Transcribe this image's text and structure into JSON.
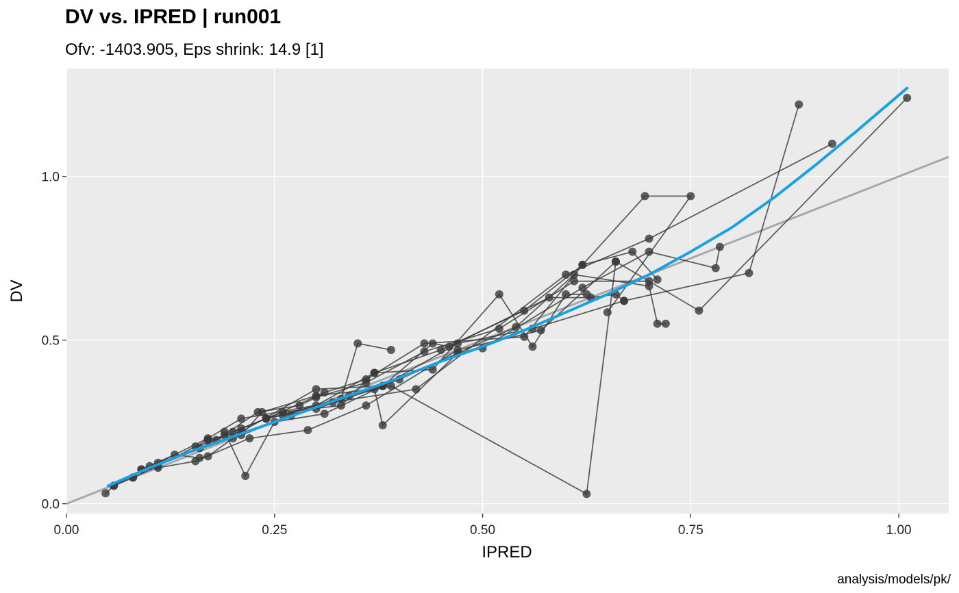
{
  "chart_data": {
    "type": "scatter",
    "title": "DV vs. IPRED | run001",
    "subtitle": "Ofv: -1403.905, Eps shrink: 14.9 [1]",
    "xlabel": "IPRED",
    "ylabel": "DV",
    "caption": "analysis/models/pk/",
    "xlim": [
      0.0,
      1.06
    ],
    "ylim": [
      -0.03,
      1.33
    ],
    "x_ticks": [
      0.0,
      0.25,
      0.5,
      0.75,
      1.0
    ],
    "x_tick_labels": [
      "0.00",
      "0.25",
      "0.50",
      "0.75",
      "1.00"
    ],
    "y_ticks": [
      0.0,
      0.5,
      1.0
    ],
    "y_tick_labels": [
      "0.0",
      "0.5",
      "1.0"
    ],
    "grid": true,
    "colors": {
      "panel": "#EBEBEB",
      "grid": "#FFFFFF",
      "points": "#3a3a3a",
      "lines": "#3a3a3a",
      "identity": "#A8A8A8",
      "smooth": "#1BA1E2"
    },
    "reference_line": {
      "type": "identity",
      "x": [
        0.0,
        1.06
      ],
      "y": [
        0.0,
        1.06
      ]
    },
    "smooth": {
      "x": [
        0.05,
        0.1,
        0.15,
        0.2,
        0.25,
        0.3,
        0.35,
        0.4,
        0.45,
        0.5,
        0.55,
        0.6,
        0.65,
        0.7,
        0.75,
        0.8,
        0.85,
        0.9,
        0.95,
        1.01
      ],
      "y": [
        0.055,
        0.11,
        0.16,
        0.205,
        0.25,
        0.295,
        0.34,
        0.385,
        0.435,
        0.48,
        0.53,
        0.585,
        0.64,
        0.7,
        0.77,
        0.845,
        0.935,
        1.035,
        1.14,
        1.27
      ]
    },
    "subjects": [
      {
        "x": [
          0.047,
          0.057,
          0.08,
          0.09,
          0.11,
          0.17,
          0.21,
          0.32,
          0.42,
          0.6,
          0.7,
          0.92
        ],
        "y": [
          0.032,
          0.055,
          0.08,
          0.105,
          0.125,
          0.2,
          0.26,
          0.31,
          0.35,
          0.7,
          0.81,
          1.1
        ]
      },
      {
        "x": [
          0.057,
          0.1,
          0.16,
          0.19,
          0.24,
          0.3,
          0.37,
          0.45,
          0.55,
          0.62,
          0.695,
          0.75,
          0.65
        ],
        "y": [
          0.055,
          0.115,
          0.17,
          0.21,
          0.26,
          0.3,
          0.4,
          0.47,
          0.59,
          0.73,
          0.94,
          0.94,
          0.585
        ]
      },
      {
        "x": [
          0.08,
          0.11,
          0.17,
          0.21,
          0.3,
          0.38,
          0.47,
          0.56,
          0.67,
          0.82,
          0.88
        ],
        "y": [
          0.08,
          0.115,
          0.195,
          0.22,
          0.35,
          0.36,
          0.49,
          0.535,
          0.62,
          0.705,
          1.22
        ]
      },
      {
        "x": [
          0.09,
          0.13,
          0.16,
          0.17,
          0.2,
          0.27,
          0.33,
          0.35,
          0.39
        ],
        "y": [
          0.105,
          0.15,
          0.14,
          0.145,
          0.2,
          0.27,
          0.32,
          0.49,
          0.47
        ]
      },
      {
        "x": [
          0.11,
          0.155,
          0.22,
          0.29,
          0.36,
          0.47,
          0.57,
          0.66,
          0.76,
          1.01
        ],
        "y": [
          0.11,
          0.13,
          0.2,
          0.225,
          0.3,
          0.47,
          0.53,
          0.74,
          0.59,
          1.24
        ]
      },
      {
        "x": [
          0.155,
          0.18,
          0.23,
          0.28,
          0.3,
          0.36,
          0.43,
          0.52,
          0.61,
          0.7
        ],
        "y": [
          0.175,
          0.195,
          0.28,
          0.3,
          0.325,
          0.37,
          0.465,
          0.535,
          0.68,
          0.68
        ]
      },
      {
        "x": [
          0.17,
          0.21,
          0.235,
          0.3,
          0.37,
          0.38,
          0.47,
          0.5,
          0.62,
          0.7,
          0.78,
          0.785
        ],
        "y": [
          0.195,
          0.21,
          0.28,
          0.33,
          0.35,
          0.24,
          0.46,
          0.475,
          0.66,
          0.77,
          0.72,
          0.785
        ]
      },
      {
        "x": [
          0.19,
          0.215,
          0.25,
          0.31,
          0.38,
          0.4,
          0.54,
          0.61,
          0.7,
          0.71,
          0.72
        ],
        "y": [
          0.22,
          0.085,
          0.25,
          0.275,
          0.36,
          0.38,
          0.54,
          0.7,
          0.665,
          0.55,
          0.55
        ]
      },
      {
        "x": [
          0.2,
          0.24,
          0.31,
          0.36,
          0.43,
          0.55,
          0.62,
          0.68,
          0.71
        ],
        "y": [
          0.22,
          0.26,
          0.34,
          0.38,
          0.49,
          0.51,
          0.73,
          0.77,
          0.685
        ]
      },
      {
        "x": [
          0.21,
          0.26,
          0.33,
          0.37,
          0.44,
          0.52,
          0.56,
          0.6,
          0.625
        ],
        "y": [
          0.23,
          0.28,
          0.3,
          0.4,
          0.41,
          0.64,
          0.48,
          0.64,
          0.64
        ]
      },
      {
        "x": [
          0.24,
          0.3,
          0.38,
          0.44,
          0.46,
          0.58,
          0.63,
          0.66,
          0.67
        ],
        "y": [
          0.26,
          0.29,
          0.36,
          0.49,
          0.48,
          0.63,
          0.63,
          0.64,
          0.62
        ]
      },
      {
        "x": [
          0.26,
          0.34,
          0.39,
          0.625,
          0.66
        ],
        "y": [
          0.27,
          0.33,
          0.36,
          0.03,
          0.74
        ]
      }
    ]
  }
}
